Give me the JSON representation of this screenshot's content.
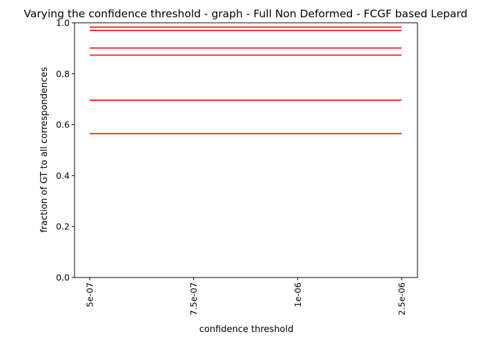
{
  "chart_data": {
    "type": "line",
    "title": "Varying the confidence threshold - graph - Full Non Deformed -  FCGF based Lepard",
    "xlabel": "confidence threshold",
    "ylabel": "fraction of GT to all correspondences",
    "x_scale": "categorical",
    "categories": [
      "5e-07",
      "7.5e-07",
      "1e-06",
      "2.5e-06"
    ],
    "ylim": [
      0,
      1.0
    ],
    "yticks": [
      "0.0",
      "0.2",
      "0.4",
      "0.6",
      "0.8",
      "1.0"
    ],
    "grid": false,
    "legend": "none",
    "line_color": "#ff0000",
    "series": [
      {
        "values": [
          0.983,
          0.983,
          0.983,
          0.983
        ]
      },
      {
        "values": [
          0.97,
          0.97,
          0.97,
          0.97
        ]
      },
      {
        "values": [
          0.901,
          0.901,
          0.901,
          0.901
        ]
      },
      {
        "values": [
          0.873,
          0.873,
          0.873,
          0.873
        ]
      },
      {
        "values": [
          0.696,
          0.696,
          0.696,
          0.696
        ]
      },
      {
        "values": [
          0.565,
          0.565,
          0.565,
          0.565
        ]
      }
    ]
  }
}
